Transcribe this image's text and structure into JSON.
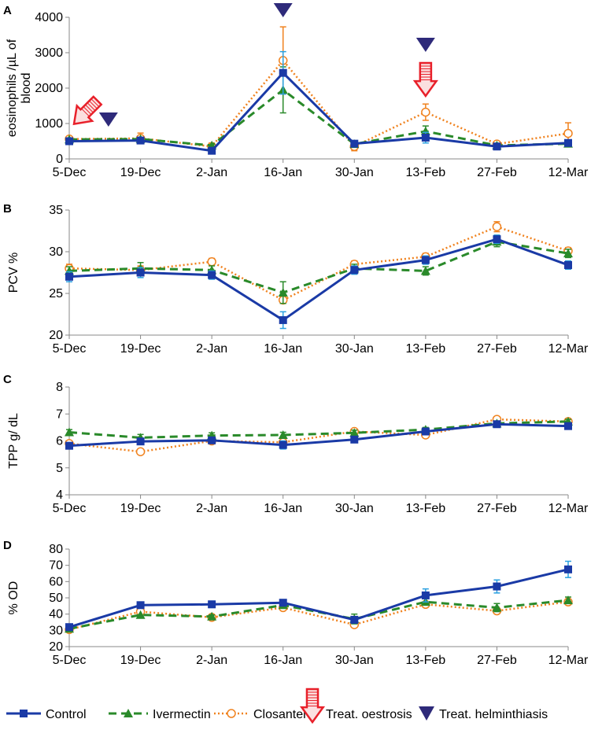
{
  "colors": {
    "control": "#1a3aa6",
    "ivermectin": "#2a8a2a",
    "closantel": "#f0821e",
    "control_err": "#2aa0e0",
    "ivermectin_err": "#2a8a2a",
    "closantel_err": "#f0821e",
    "treat_oestrosis": "#e8202a",
    "treat_helminthiasis": "#2e2a7a"
  },
  "legend": {
    "control": "Control",
    "ivermectin": "Ivermectin",
    "closantel": "Closantel",
    "treat_oestrosis": "Treat. oestrosis",
    "treat_helminthiasis": "Treat. helminthiasis"
  },
  "chart_data": [
    {
      "type": "line",
      "panel": "A",
      "ylabel": "eosinophils /µL of blood",
      "ylabel_lines": [
        "eosinophils /µL of",
        "blood"
      ],
      "categories": [
        "5-Dec",
        "19-Dec",
        "2-Jan",
        "16-Jan",
        "30-Jan",
        "13-Feb",
        "27-Feb",
        "12-Mar"
      ],
      "ylim": [
        0,
        4000
      ],
      "yticks": [
        0,
        1000,
        2000,
        3000,
        4000
      ],
      "series": [
        {
          "name": "Control",
          "values": [
            500,
            520,
            230,
            2430,
            430,
            600,
            350,
            450
          ],
          "err": [
            0,
            0,
            0,
            600,
            0,
            150,
            0,
            0
          ]
        },
        {
          "name": "Ivermectin",
          "values": [
            550,
            560,
            380,
            1950,
            420,
            780,
            380,
            430
          ],
          "err": [
            0,
            0,
            0,
            650,
            0,
            150,
            0,
            0
          ]
        },
        {
          "name": "Closantel",
          "values": [
            560,
            580,
            350,
            2780,
            350,
            1320,
            420,
            720
          ],
          "err": [
            0,
            150,
            100,
            950,
            120,
            230,
            0,
            300
          ]
        }
      ],
      "annotations": [
        {
          "type": "treat_oestrosis",
          "date_index": 0.15
        },
        {
          "type": "treat_helminthiasis",
          "date_index": 0.55
        },
        {
          "type": "treat_helminthiasis",
          "date_index": 3.0
        },
        {
          "type": "treat_oestrosis",
          "date_index": 5.0
        },
        {
          "type": "treat_helminthiasis",
          "date_index": 5.0
        }
      ]
    },
    {
      "type": "line",
      "panel": "B",
      "ylabel": "PCV %",
      "categories": [
        "5-Dec",
        "19-Dec",
        "2-Jan",
        "16-Jan",
        "30-Jan",
        "13-Feb",
        "27-Feb",
        "12-Mar"
      ],
      "ylim": [
        20,
        35
      ],
      "yticks": [
        20,
        25,
        30,
        35
      ],
      "series": [
        {
          "name": "Control",
          "values": [
            27.0,
            27.5,
            27.2,
            21.8,
            27.8,
            29.0,
            31.5,
            28.4
          ],
          "err": [
            0.6,
            0.6,
            0.5,
            1.0,
            0.5,
            0.5,
            0.5,
            0.5
          ]
        },
        {
          "name": "Ivermectin",
          "values": [
            27.7,
            28.0,
            27.8,
            25.1,
            28.0,
            27.7,
            31.2,
            29.8
          ],
          "err": [
            0.5,
            0.7,
            0.5,
            1.3,
            0.5,
            0.5,
            0.6,
            0.5
          ]
        },
        {
          "name": "Closantel",
          "values": [
            28.0,
            27.8,
            28.8,
            24.2,
            28.5,
            29.4,
            33.0,
            30.1
          ],
          "err": [
            0.5,
            0.5,
            0.4,
            0.4,
            0.4,
            0.4,
            0.6,
            0.4
          ]
        }
      ]
    },
    {
      "type": "line",
      "panel": "C",
      "ylabel": "TPP g/ dL",
      "categories": [
        "5-Dec",
        "19-Dec",
        "2-Jan",
        "16-Jan",
        "30-Jan",
        "13-Feb",
        "27-Feb",
        "12-Mar"
      ],
      "ylim": [
        4,
        8
      ],
      "yticks": [
        4,
        5,
        6,
        7,
        8
      ],
      "series": [
        {
          "name": "Control",
          "values": [
            5.82,
            5.98,
            6.02,
            5.85,
            6.05,
            6.35,
            6.62,
            6.55
          ],
          "err": [
            0.1,
            0.1,
            0.1,
            0.15,
            0.1,
            0.1,
            0.08,
            0.08
          ]
        },
        {
          "name": "Ivermectin",
          "values": [
            6.32,
            6.12,
            6.2,
            6.22,
            6.3,
            6.42,
            6.65,
            6.72
          ],
          "err": [
            0.1,
            0.12,
            0.1,
            0.1,
            0.1,
            0.08,
            0.08,
            0.08
          ]
        },
        {
          "name": "Closantel",
          "values": [
            5.9,
            5.6,
            6.0,
            5.95,
            6.35,
            6.22,
            6.8,
            6.72
          ],
          "err": [
            0.08,
            0.05,
            0.05,
            0.05,
            0.05,
            0.05,
            0.05,
            0.05
          ]
        }
      ]
    },
    {
      "type": "line",
      "panel": "D",
      "ylabel": "% OD",
      "categories": [
        "5-Dec",
        "19-Dec",
        "2-Jan",
        "16-Jan",
        "30-Jan",
        "13-Feb",
        "27-Feb",
        "12-Mar"
      ],
      "ylim": [
        20,
        80
      ],
      "yticks": [
        20,
        30,
        40,
        50,
        60,
        70,
        80
      ],
      "series": [
        {
          "name": "Control",
          "values": [
            32,
            45.5,
            46,
            47,
            36.5,
            51.5,
            57,
            67.5
          ],
          "err": [
            0,
            0,
            2,
            0,
            2,
            4,
            4,
            5
          ]
        },
        {
          "name": "Ivermectin",
          "values": [
            31,
            39.5,
            38.5,
            45.5,
            37,
            47.5,
            44,
            48.5
          ],
          "err": [
            0,
            0,
            1,
            0,
            3,
            2,
            2.5,
            2
          ]
        },
        {
          "name": "Closantel",
          "values": [
            30.5,
            41.5,
            38,
            44,
            33.5,
            46,
            42,
            47.5
          ],
          "err": [
            0,
            0,
            0,
            0,
            1.5,
            0,
            0,
            1
          ]
        }
      ]
    }
  ],
  "panels": {
    "a": "A",
    "b": "B",
    "c": "C",
    "d": "D"
  }
}
